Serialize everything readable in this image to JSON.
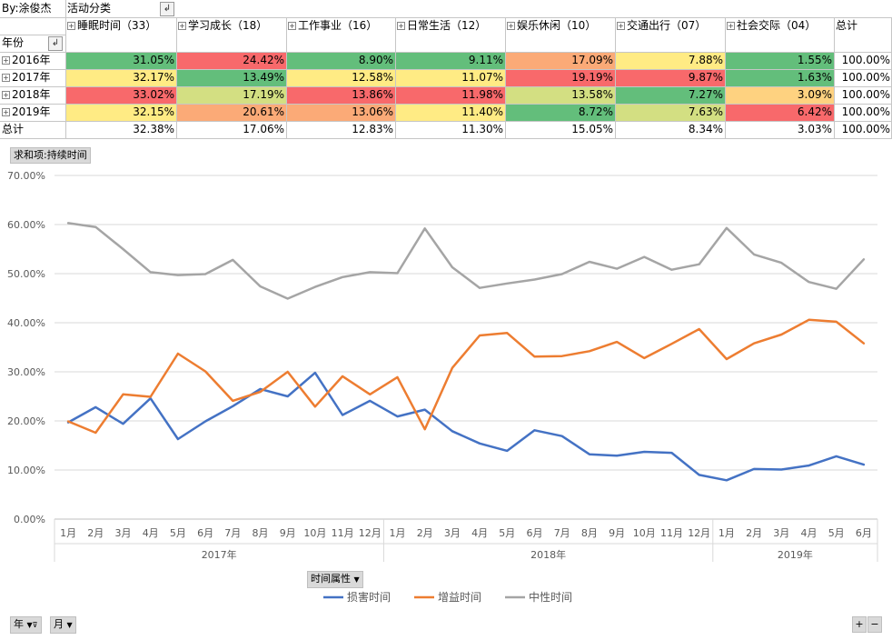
{
  "pivot": {
    "author_cell": "By:涂俊杰",
    "column_field": "活动分类",
    "row_field": "年份",
    "filter_icon": "sort-filter-icon",
    "columns": [
      "睡眠时间（33）",
      "学习成长（18）",
      "工作事业（16）",
      "日常生活（12）",
      "娱乐休闲（10）",
      "交通出行（07）",
      "社会交际（04）"
    ],
    "total_header": "总计",
    "rows": [
      {
        "label": "2016年",
        "values": [
          "31.05%",
          "24.42%",
          "8.90%",
          "9.11%",
          "17.09%",
          "7.88%",
          "1.55%"
        ],
        "total": "100.00%"
      },
      {
        "label": "2017年",
        "values": [
          "32.17%",
          "13.49%",
          "12.58%",
          "11.07%",
          "19.19%",
          "9.87%",
          "1.63%"
        ],
        "total": "100.00%"
      },
      {
        "label": "2018年",
        "values": [
          "33.02%",
          "17.19%",
          "13.86%",
          "11.98%",
          "13.58%",
          "7.27%",
          "3.09%"
        ],
        "total": "100.00%"
      },
      {
        "label": "2019年",
        "values": [
          "32.15%",
          "20.61%",
          "13.06%",
          "11.40%",
          "8.72%",
          "7.63%",
          "6.42%"
        ],
        "total": "100.00%"
      }
    ],
    "grand_total": {
      "label": "总计",
      "values": [
        "32.38%",
        "17.06%",
        "12.83%",
        "11.30%",
        "15.05%",
        "8.34%",
        "3.03%"
      ],
      "total": "100.00%"
    },
    "cell_colors": [
      [
        "#63be7b",
        "#f8696b",
        "#63be7b",
        "#63be7b",
        "#fbaa77",
        "#ffeb84",
        "#63be7b"
      ],
      [
        "#ffeb84",
        "#63be7b",
        "#ffeb84",
        "#ffeb84",
        "#f8696b",
        "#f8696b",
        "#63be7b"
      ],
      [
        "#f8696b",
        "#d3df82",
        "#f8696b",
        "#f8696b",
        "#d3df82",
        "#63be7b",
        "#fed280"
      ],
      [
        "#ffeb84",
        "#fbaa77",
        "#fbaa77",
        "#ffeb84",
        "#63be7b",
        "#d3df82",
        "#f8696b"
      ]
    ]
  },
  "chart_controls": {
    "value_field_button": "求和项:持续时间",
    "axis_field_button": "时间属性",
    "year_button": "年",
    "month_button": "月",
    "zoom_in": "+",
    "zoom_out": "−"
  },
  "chart_data": {
    "type": "line",
    "x": [
      "1月",
      "2月",
      "3月",
      "4月",
      "5月",
      "6月",
      "7月",
      "8月",
      "9月",
      "10月",
      "11月",
      "12月",
      "1月",
      "2月",
      "3月",
      "4月",
      "5月",
      "6月",
      "7月",
      "8月",
      "9月",
      "10月",
      "11月",
      "12月",
      "1月",
      "2月",
      "3月",
      "4月",
      "5月",
      "6月"
    ],
    "groups": [
      {
        "label": "2017年",
        "count": 12
      },
      {
        "label": "2018年",
        "count": 12
      },
      {
        "label": "2019年",
        "count": 6
      }
    ],
    "y_ticks": [
      "0.00%",
      "10.00%",
      "20.00%",
      "30.00%",
      "40.00%",
      "50.00%",
      "60.00%",
      "70.00%"
    ],
    "ylim": [
      0,
      70
    ],
    "grid": true,
    "legend_position": "bottom",
    "series": [
      {
        "name": "损害时间",
        "color": "#4472c4",
        "values": [
          19.7,
          22.8,
          19.4,
          24.6,
          16.3,
          19.9,
          23.0,
          26.5,
          25.0,
          29.8,
          21.2,
          24.1,
          20.9,
          22.3,
          17.9,
          15.4,
          13.9,
          18.1,
          16.9,
          13.2,
          12.9,
          13.7,
          13.5,
          9.0,
          7.9,
          10.2,
          10.1,
          10.9,
          12.8,
          11.1
        ]
      },
      {
        "name": "增益时间",
        "color": "#ed7d31",
        "values": [
          19.9,
          17.6,
          25.4,
          24.9,
          33.7,
          30.1,
          24.1,
          25.9,
          30.0,
          22.9,
          29.1,
          25.4,
          28.9,
          18.3,
          30.8,
          37.4,
          37.9,
          33.1,
          33.2,
          34.2,
          36.1,
          32.8,
          35.7,
          38.7,
          32.6,
          35.8,
          37.6,
          40.6,
          40.2,
          35.8
        ]
      },
      {
        "name": "中性时间",
        "color": "#a5a5a5",
        "values": [
          60.3,
          59.5,
          55.0,
          50.3,
          49.7,
          49.9,
          52.8,
          47.4,
          44.9,
          47.3,
          49.3,
          50.3,
          50.1,
          59.2,
          51.3,
          47.1,
          48.0,
          48.8,
          49.9,
          52.4,
          51.0,
          53.4,
          50.8,
          51.9,
          59.3,
          53.9,
          52.2,
          48.3,
          46.9,
          52.9
        ]
      }
    ]
  }
}
